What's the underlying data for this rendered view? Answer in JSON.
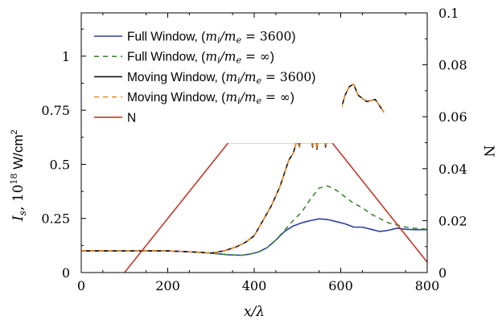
{
  "chart_data": {
    "type": "line",
    "x_axis": {
      "label": "x/λ",
      "min": 0,
      "max": 800,
      "ticks": [
        0,
        200,
        400,
        600,
        800
      ]
    },
    "y_axis_left": {
      "label": "I_s, 10^18 W/cm^2",
      "min": 0,
      "max": 1.2,
      "ticks": [
        0,
        0.25,
        0.5,
        0.75,
        1
      ],
      "tick_labels": [
        "0",
        "0.25",
        "0.5",
        "0.75",
        "1"
      ]
    },
    "y_axis_right": {
      "label": "N",
      "min": 0,
      "max": 0.1,
      "ticks": [
        0,
        0.02,
        0.04,
        0.06,
        0.08,
        0.1
      ],
      "tick_labels": [
        "0",
        "0.02",
        "0.04",
        "0.06",
        "0.08",
        "0.1"
      ]
    },
    "grid": false,
    "legend_position": "top-left",
    "series": [
      {
        "name": "Full Window, (m_i/m_e = 3600)",
        "legend_main": "Full Window, (",
        "legend_math": "m_i/m_e = 3600",
        "color": "#2b3f9e",
        "dash": "solid",
        "axis": "left",
        "x": [
          0,
          100,
          200,
          260,
          300,
          340,
          370,
          390,
          410,
          430,
          450,
          470,
          490,
          510,
          530,
          550,
          570,
          590,
          610,
          630,
          650,
          670,
          690,
          710,
          730,
          750,
          770,
          800
        ],
        "y": [
          0.1,
          0.1,
          0.1,
          0.095,
          0.09,
          0.082,
          0.08,
          0.085,
          0.095,
          0.115,
          0.15,
          0.19,
          0.215,
          0.23,
          0.24,
          0.248,
          0.245,
          0.235,
          0.225,
          0.21,
          0.21,
          0.2,
          0.19,
          0.195,
          0.205,
          0.2,
          0.198,
          0.198
        ]
      },
      {
        "name": "Full Window, (m_i/m_e = ∞)",
        "legend_main": "Full Window, (",
        "legend_math": "m_i/m_e = ∞",
        "color": "#3d8a2e",
        "dash": "6,5",
        "axis": "left",
        "x": [
          0,
          100,
          200,
          260,
          300,
          340,
          370,
          390,
          410,
          430,
          450,
          470,
          490,
          510,
          530,
          550,
          570,
          590,
          610,
          630,
          650,
          670,
          690,
          710,
          730,
          750,
          770,
          800
        ],
        "y": [
          0.1,
          0.1,
          0.1,
          0.095,
          0.09,
          0.082,
          0.08,
          0.085,
          0.095,
          0.115,
          0.15,
          0.195,
          0.24,
          0.28,
          0.34,
          0.39,
          0.4,
          0.38,
          0.35,
          0.32,
          0.3,
          0.27,
          0.25,
          0.23,
          0.22,
          0.21,
          0.205,
          0.2
        ]
      },
      {
        "name": "Moving Window, (m_i/m_e = 3600)",
        "legend_main": "Moving Window, (",
        "legend_math": "m_i/m_e = 3600",
        "color": "#111111",
        "dash": "solid",
        "axis": "left",
        "x": [
          0,
          100,
          200,
          260,
          300,
          330,
          360,
          380,
          400,
          420,
          440,
          460,
          480,
          490,
          500,
          505,
          510,
          515,
          520,
          525,
          530,
          535,
          540,
          545,
          550,
          555,
          560,
          565,
          570,
          575,
          580,
          590,
          600,
          610,
          620,
          630,
          640,
          660,
          680,
          700
        ],
        "y": [
          0.1,
          0.1,
          0.1,
          0.095,
          0.09,
          0.1,
          0.12,
          0.14,
          0.17,
          0.24,
          0.31,
          0.4,
          0.52,
          0.55,
          0.62,
          0.58,
          0.68,
          0.6,
          0.69,
          0.6,
          0.67,
          0.58,
          0.65,
          0.57,
          0.64,
          0.6,
          0.66,
          0.58,
          0.64,
          0.61,
          0.65,
          0.7,
          0.75,
          0.82,
          0.86,
          0.87,
          0.82,
          0.79,
          0.8,
          0.74
        ]
      },
      {
        "name": "Moving Window, (m_i/m_e = ∞)",
        "legend_main": "Moving Window, (",
        "legend_math": "m_i/m_e = ∞",
        "color": "#f28c28",
        "dash": "6,5",
        "axis": "left",
        "x": [
          0,
          100,
          200,
          260,
          300,
          330,
          360,
          380,
          400,
          420,
          440,
          460,
          480,
          490,
          500,
          505,
          510,
          515,
          520,
          525,
          530,
          535,
          540,
          545,
          550,
          555,
          560,
          565,
          570,
          575,
          580,
          590,
          600,
          610,
          620,
          630,
          640,
          660,
          680,
          700
        ],
        "y": [
          0.1,
          0.1,
          0.1,
          0.095,
          0.09,
          0.1,
          0.12,
          0.14,
          0.17,
          0.24,
          0.31,
          0.4,
          0.52,
          0.55,
          0.62,
          0.58,
          0.68,
          0.6,
          0.69,
          0.6,
          0.67,
          0.58,
          0.65,
          0.57,
          0.64,
          0.6,
          0.66,
          0.58,
          0.64,
          0.61,
          0.65,
          0.7,
          0.75,
          0.82,
          0.86,
          0.87,
          0.82,
          0.79,
          0.8,
          0.74
        ]
      },
      {
        "name": "N",
        "legend_main": "N",
        "legend_math": "",
        "color": "#c0392b",
        "dash": "solid",
        "axis": "right",
        "x": [
          100,
          340,
          580,
          800
        ],
        "y": [
          0,
          0.05,
          0.05,
          0.004
        ]
      }
    ]
  }
}
